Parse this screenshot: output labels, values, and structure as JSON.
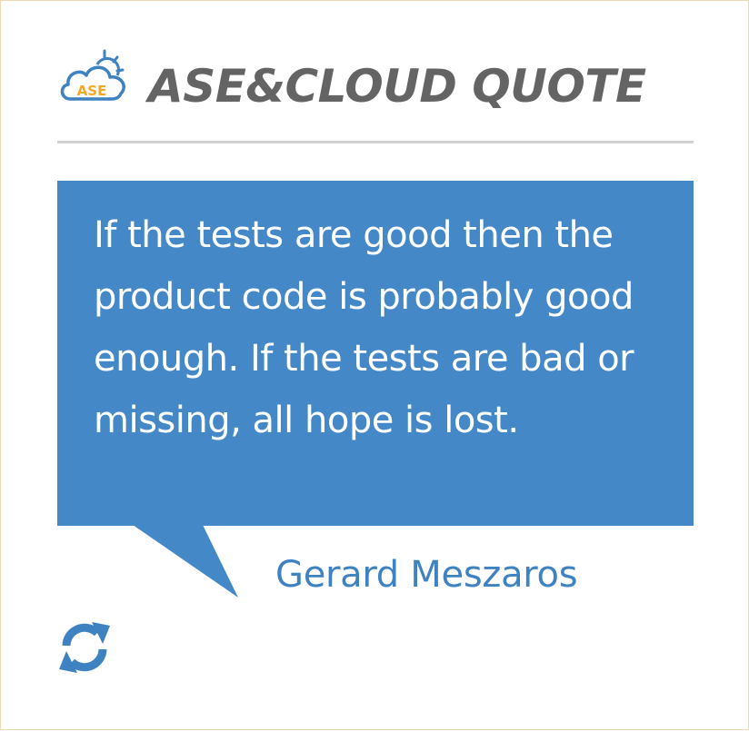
{
  "header": {
    "logo_text": "ASE",
    "title": "ASE&CLOUD QUOTE"
  },
  "quote": {
    "text": "If the tests are good then the product code is probably good enough. If the tests are bad or missing, all hope is lost.",
    "author": "Gerard Meszaros"
  },
  "icons": {
    "logo": "cloud-sun-logo-icon",
    "refresh": "refresh-icon"
  },
  "colors": {
    "accent": "#4588c8",
    "author": "#3f82c1",
    "title": "#646464",
    "logo_orange": "#f5a623",
    "logo_blue": "#3f82c1",
    "rule": "#d2d2d2",
    "frame_border": "#ecd9b6"
  }
}
